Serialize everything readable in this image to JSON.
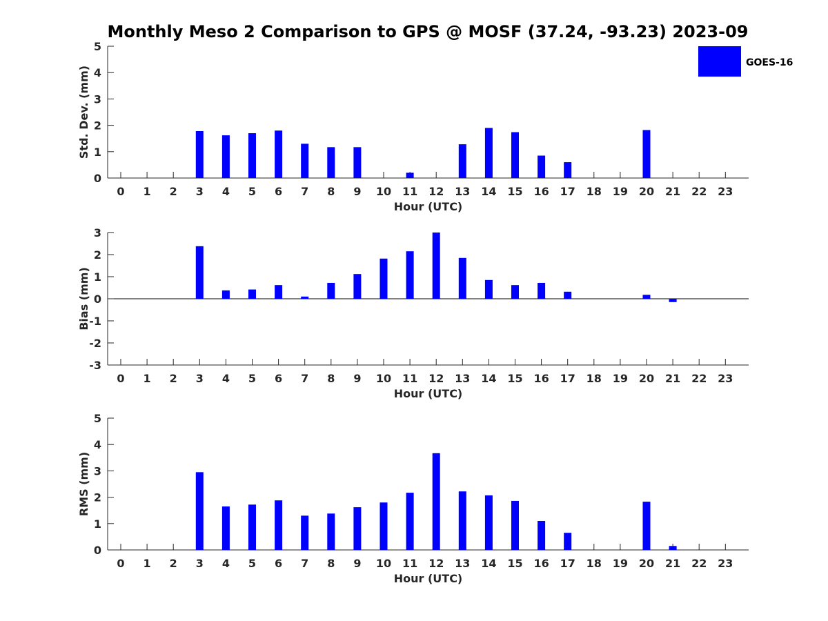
{
  "chart_data": {
    "title": "Monthly Meso 2 Comparison to GPS @ MOSF (37.24, -93.23) 2023-09",
    "legend": {
      "label": "GOES-16",
      "placement": "top-right",
      "color": "#0000ff"
    },
    "bar_color": "#0000ff",
    "axis_color": "#262626",
    "subplots": [
      {
        "type": "bar",
        "ylabel": "Std. Dev. (mm)",
        "xlabel": "Hour (UTC)",
        "ylim": [
          0,
          5
        ],
        "yticks": [
          "0",
          "1",
          "2",
          "3",
          "4",
          "5"
        ],
        "categories": [
          "0",
          "1",
          "2",
          "3",
          "4",
          "5",
          "6",
          "7",
          "8",
          "9",
          "10",
          "11",
          "12",
          "13",
          "14",
          "15",
          "16",
          "17",
          "18",
          "19",
          "20",
          "21",
          "22",
          "23"
        ],
        "values": [
          null,
          null,
          null,
          1.78,
          1.62,
          1.7,
          1.8,
          1.3,
          1.17,
          1.17,
          null,
          0.2,
          null,
          1.28,
          1.9,
          1.74,
          0.85,
          0.6,
          null,
          null,
          1.82,
          null,
          null,
          null
        ],
        "zero_line": false
      },
      {
        "type": "bar",
        "ylabel": "Bias (mm)",
        "xlabel": "Hour (UTC)",
        "ylim": [
          -3,
          3
        ],
        "yticks": [
          "-3",
          "-2",
          "-1",
          "0",
          "1",
          "2",
          "3"
        ],
        "categories": [
          "0",
          "1",
          "2",
          "3",
          "4",
          "5",
          "6",
          "7",
          "8",
          "9",
          "10",
          "11",
          "12",
          "13",
          "14",
          "15",
          "16",
          "17",
          "18",
          "19",
          "20",
          "21",
          "22",
          "23"
        ],
        "values": [
          null,
          null,
          null,
          2.38,
          0.38,
          0.42,
          0.62,
          0.1,
          0.72,
          1.12,
          1.82,
          2.15,
          3.0,
          1.85,
          0.85,
          0.62,
          0.72,
          0.32,
          null,
          null,
          0.18,
          -0.15,
          null,
          null
        ],
        "zero_line": true
      },
      {
        "type": "bar",
        "ylabel": "RMS (mm)",
        "xlabel": "Hour (UTC)",
        "ylim": [
          0,
          5
        ],
        "yticks": [
          "0",
          "1",
          "2",
          "3",
          "4",
          "5"
        ],
        "categories": [
          "0",
          "1",
          "2",
          "3",
          "4",
          "5",
          "6",
          "7",
          "8",
          "9",
          "10",
          "11",
          "12",
          "13",
          "14",
          "15",
          "16",
          "17",
          "18",
          "19",
          "20",
          "21",
          "22",
          "23"
        ],
        "values": [
          null,
          null,
          null,
          2.95,
          1.65,
          1.72,
          1.88,
          1.3,
          1.38,
          1.62,
          1.8,
          2.17,
          3.67,
          2.22,
          2.07,
          1.86,
          1.1,
          0.65,
          null,
          null,
          1.83,
          0.15,
          null,
          null
        ],
        "zero_line": false
      }
    ]
  }
}
